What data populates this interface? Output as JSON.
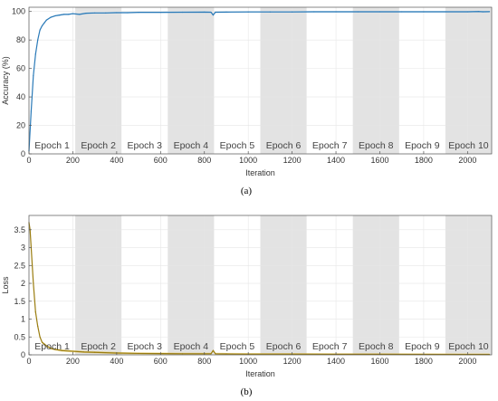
{
  "chart_data": [
    {
      "type": "line",
      "id": "a",
      "caption": "(a)",
      "xlabel": "Iteration",
      "ylabel": "Accuracy (%)",
      "xlim": [
        0,
        2110
      ],
      "ylim": [
        0,
        103
      ],
      "xticks": [
        0,
        200,
        400,
        600,
        800,
        1000,
        1200,
        1400,
        1600,
        1800,
        2000
      ],
      "yticks": [
        0,
        20,
        40,
        60,
        80,
        100
      ],
      "grid": true,
      "epoch_bands": [
        {
          "label": "Epoch 1",
          "start": 0,
          "end": 211,
          "shaded": false
        },
        {
          "label": "Epoch 2",
          "start": 211,
          "end": 422,
          "shaded": true
        },
        {
          "label": "Epoch 3",
          "start": 422,
          "end": 633,
          "shaded": false
        },
        {
          "label": "Epoch 4",
          "start": 633,
          "end": 844,
          "shaded": true
        },
        {
          "label": "Epoch 5",
          "start": 844,
          "end": 1055,
          "shaded": false
        },
        {
          "label": "Epoch 6",
          "start": 1055,
          "end": 1266,
          "shaded": true
        },
        {
          "label": "Epoch 7",
          "start": 1266,
          "end": 1477,
          "shaded": false
        },
        {
          "label": "Epoch 8",
          "start": 1477,
          "end": 1688,
          "shaded": true
        },
        {
          "label": "Epoch 9",
          "start": 1688,
          "end": 1899,
          "shaded": false
        },
        {
          "label": "Epoch 10",
          "start": 1899,
          "end": 2110,
          "shaded": true
        }
      ],
      "series": [
        {
          "color": "#2a7ab8",
          "band_color": "#9cc8e8",
          "x": [
            0,
            10,
            20,
            30,
            40,
            50,
            60,
            70,
            80,
            100,
            120,
            140,
            160,
            180,
            200,
            230,
            260,
            300,
            350,
            400,
            450,
            500,
            600,
            700,
            800,
            830,
            840,
            850,
            900,
            1000,
            1100,
            1200,
            1300,
            1400,
            1500,
            1600,
            1700,
            1800,
            1900,
            2000,
            2050,
            2070,
            2100
          ],
          "y": [
            2,
            30,
            55,
            70,
            80,
            87,
            90,
            92,
            94,
            96,
            97,
            97.5,
            98,
            98,
            98.5,
            98,
            98.8,
            99,
            99,
            99.2,
            99.2,
            99.4,
            99.4,
            99.5,
            99.6,
            99.5,
            97.5,
            99.5,
            99.6,
            99.7,
            99.7,
            99.7,
            99.8,
            99.8,
            99.8,
            99.8,
            99.8,
            99.8,
            99.8,
            99.8,
            100,
            99.8,
            99.9
          ]
        }
      ]
    },
    {
      "type": "line",
      "id": "b",
      "caption": "(b)",
      "xlabel": "Iteration",
      "ylabel": "Loss",
      "xlim": [
        0,
        2110
      ],
      "ylim": [
        0,
        3.9
      ],
      "xticks": [
        0,
        200,
        400,
        600,
        800,
        1000,
        1200,
        1400,
        1600,
        1800,
        2000
      ],
      "yticks": [
        0,
        0.5,
        1,
        1.5,
        2,
        2.5,
        3,
        3.5
      ],
      "grid": true,
      "epoch_bands": [
        {
          "label": "Epoch 1",
          "start": 0,
          "end": 211,
          "shaded": false
        },
        {
          "label": "Epoch 2",
          "start": 211,
          "end": 422,
          "shaded": true
        },
        {
          "label": "Epoch 3",
          "start": 422,
          "end": 633,
          "shaded": false
        },
        {
          "label": "Epoch 4",
          "start": 633,
          "end": 844,
          "shaded": true
        },
        {
          "label": "Epoch 5",
          "start": 844,
          "end": 1055,
          "shaded": false
        },
        {
          "label": "Epoch 6",
          "start": 1055,
          "end": 1266,
          "shaded": true
        },
        {
          "label": "Epoch 7",
          "start": 1266,
          "end": 1477,
          "shaded": false
        },
        {
          "label": "Epoch 8",
          "start": 1477,
          "end": 1688,
          "shaded": true
        },
        {
          "label": "Epoch 9",
          "start": 1688,
          "end": 1899,
          "shaded": false
        },
        {
          "label": "Epoch 10",
          "start": 1899,
          "end": 2110,
          "shaded": true
        }
      ],
      "series": [
        {
          "color": "#9a7d10",
          "band_color": "#e8c65a",
          "x": [
            0,
            5,
            10,
            20,
            30,
            40,
            50,
            60,
            70,
            80,
            100,
            120,
            150,
            200,
            250,
            300,
            400,
            500,
            600,
            700,
            800,
            830,
            840,
            850,
            900,
            1000,
            1200,
            1400,
            1600,
            1800,
            2000,
            2100
          ],
          "y": [
            3.7,
            3.5,
            3.0,
            2.0,
            1.2,
            0.8,
            0.5,
            0.35,
            0.3,
            0.25,
            0.18,
            0.15,
            0.12,
            0.1,
            0.08,
            0.07,
            0.05,
            0.04,
            0.035,
            0.03,
            0.03,
            0.03,
            0.12,
            0.03,
            0.025,
            0.02,
            0.02,
            0.015,
            0.015,
            0.012,
            0.01,
            0.01
          ]
        }
      ]
    }
  ]
}
